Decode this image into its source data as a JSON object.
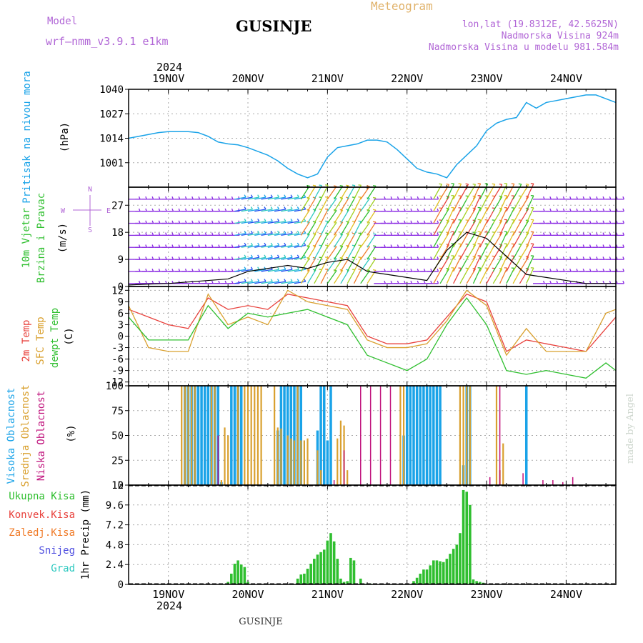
{
  "header": {
    "model_label": "Model",
    "model_name": "wrf–nmm_v3.9.1  e1km",
    "title": "GUSINJE",
    "meteogram_label": "Meteogram",
    "lonlat": "lon,lat (19.8312E, 42.5625N)",
    "elevation": "Nadmorska Visina 924m",
    "model_elevation": "Nadmorska Visina u modelu 981.584m",
    "year_top": "2024",
    "year_bottom": "2024",
    "footer_title": "GUSINJE",
    "watermark": "made by Angel"
  },
  "colors": {
    "pressure": "#1aa3e8",
    "t2m": "#e8413c",
    "sfc": "#d9a02e",
    "dew": "#2fbf2f",
    "cloud_high": "#1aa3e8",
    "cloud_mid": "#d9a02e",
    "cloud_low": "#c0127c",
    "precip": "#2fbf2f",
    "wind_speed": "#000000"
  },
  "chart_data": [
    {
      "type": "line",
      "panel": "pressure",
      "ylabel": [
        "Pritisak na nivou mora",
        "(hPa)"
      ],
      "ylim": [
        988,
        1040
      ],
      "yticks": [
        1001,
        1014,
        1027,
        1040
      ],
      "x_days": [
        "19NOV",
        "20NOV",
        "21NOV",
        "22NOV",
        "23NOV",
        "24NOV"
      ],
      "x_hours": [
        0,
        3,
        6,
        9,
        12,
        15,
        18,
        21,
        24,
        27,
        30,
        33,
        36,
        39,
        42,
        45,
        48,
        51,
        54,
        57,
        60,
        63,
        66,
        69,
        72,
        75,
        78,
        81,
        84,
        87,
        90,
        93,
        96,
        99,
        102,
        105,
        108,
        111,
        114,
        117,
        120,
        123,
        126,
        129,
        132,
        135,
        138,
        141,
        144,
        147
      ],
      "values": [
        1014,
        1015,
        1016,
        1017,
        1017.5,
        1017.5,
        1017.5,
        1017,
        1015,
        1012,
        1011,
        1010.5,
        1009,
        1007,
        1005,
        1002,
        998,
        995,
        993,
        995,
        1004,
        1009,
        1010,
        1011,
        1013,
        1013,
        1012,
        1008,
        1003,
        998,
        996,
        995,
        993,
        1000,
        1005,
        1010,
        1018,
        1022,
        1024,
        1025,
        1033,
        1030,
        1033,
        1034,
        1035,
        1036,
        1037,
        1037,
        1035,
        1033
      ]
    },
    {
      "type": "line",
      "panel": "wind",
      "ylabel": [
        "10m Vjetar",
        "Brzina i Pravac",
        "(m/s)"
      ],
      "compass": [
        "N",
        "E",
        "W",
        "S"
      ],
      "ylim": [
        0,
        33
      ],
      "yticks": [
        0,
        9,
        18,
        27
      ],
      "x_hours": [
        0,
        6,
        12,
        18,
        24,
        30,
        36,
        42,
        48,
        54,
        60,
        66,
        72,
        78,
        84,
        90,
        96,
        102,
        108,
        114,
        120,
        126,
        132,
        138,
        144,
        147
      ],
      "values": [
        0.5,
        0.8,
        1,
        1.5,
        2,
        2.5,
        5,
        6,
        7,
        6,
        8,
        9,
        5,
        4,
        3,
        2,
        12,
        18,
        16,
        10,
        4,
        3,
        2,
        1,
        1,
        1
      ]
    },
    {
      "type": "line",
      "panel": "temperature",
      "ylabel": [
        "2m Temp",
        "SFC Temp",
        "dewpt Temp",
        "(C)"
      ],
      "ylim": [
        -13,
        13
      ],
      "yticks": [
        -12,
        -9,
        -6,
        -3,
        0,
        3,
        6,
        9,
        12
      ],
      "x_hours": [
        0,
        6,
        12,
        18,
        24,
        30,
        36,
        42,
        48,
        54,
        60,
        66,
        72,
        78,
        84,
        90,
        96,
        102,
        108,
        114,
        120,
        126,
        132,
        138,
        144,
        147
      ],
      "series": [
        {
          "name": "2m Temp",
          "values": [
            7,
            5,
            3,
            2,
            10,
            7,
            8,
            7,
            11,
            10,
            9,
            8,
            0,
            -2,
            -2,
            -1,
            5,
            11,
            9,
            -4,
            -1,
            -2,
            -3,
            -4,
            2,
            5
          ]
        },
        {
          "name": "SFC Temp",
          "values": [
            8,
            -3,
            -4,
            -4,
            11,
            3,
            5,
            3,
            12,
            9,
            8,
            7,
            -1,
            -3,
            -3,
            -2,
            4,
            12,
            8,
            -5,
            2,
            -4,
            -4,
            -4,
            6,
            7
          ]
        },
        {
          "name": "dewpt Temp",
          "values": [
            5,
            -1,
            -1,
            -1,
            8,
            2,
            6,
            5,
            6,
            7,
            5,
            3,
            -5,
            -7,
            -9,
            -6,
            3,
            10,
            3,
            -9,
            -10,
            -9,
            -10,
            -11,
            -7,
            -9
          ]
        }
      ]
    },
    {
      "type": "bar",
      "panel": "clouds",
      "ylabel": [
        "Visoka Oblacnost",
        "Srednja Oblacnost",
        "Niska Oblacnost",
        "(%)"
      ],
      "ylim": [
        0,
        100
      ],
      "yticks": [
        0,
        25,
        50,
        75,
        100
      ],
      "series": [
        {
          "name": "Visoka Oblacnost",
          "x_hours": [
            17,
            18,
            19,
            20,
            21,
            22,
            23,
            24,
            25,
            26,
            27,
            28,
            31,
            32,
            33,
            34,
            45,
            46,
            47,
            48,
            49,
            50,
            51,
            52,
            57,
            58,
            59,
            60,
            61,
            83,
            84,
            85,
            86,
            87,
            88,
            89,
            90,
            91,
            92,
            93,
            94,
            101,
            102,
            103,
            120
          ],
          "values": [
            100,
            100,
            100,
            100,
            100,
            100,
            100,
            100,
            100,
            100,
            100,
            3,
            100,
            100,
            100,
            100,
            55,
            100,
            100,
            100,
            100,
            100,
            100,
            100,
            55,
            100,
            100,
            45,
            100,
            50,
            100,
            100,
            100,
            100,
            100,
            100,
            100,
            100,
            100,
            100,
            100,
            20,
            100,
            100,
            100
          ]
        },
        {
          "name": "Srednja Oblacnost",
          "x_hours": [
            16,
            17,
            18,
            19,
            20,
            25,
            26,
            28,
            29,
            30,
            33,
            35,
            36,
            37,
            38,
            39,
            40,
            44,
            45,
            46,
            48,
            49,
            50,
            51,
            52,
            53,
            54,
            57,
            58,
            63,
            64,
            65,
            66,
            82,
            83,
            100,
            101,
            102,
            103,
            111,
            112,
            113
          ],
          "values": [
            100,
            100,
            100,
            100,
            100,
            100,
            100,
            5,
            58,
            50,
            100,
            100,
            100,
            100,
            100,
            100,
            100,
            100,
            58,
            57,
            50,
            47,
            45,
            100,
            45,
            45,
            47,
            35,
            15,
            47,
            65,
            60,
            15,
            100,
            100,
            100,
            100,
            100,
            100,
            100,
            15,
            42
          ]
        },
        {
          "name": "Niska Oblacnost",
          "x_hours": [
            27,
            62,
            65,
            70,
            73,
            76,
            79,
            109,
            112,
            119,
            125,
            128,
            131,
            134
          ],
          "values": [
            50,
            5,
            35,
            100,
            100,
            100,
            100,
            8,
            100,
            12,
            5,
            5,
            3,
            8
          ]
        }
      ]
    },
    {
      "type": "bar",
      "panel": "precipitation",
      "ylabel": [
        "1hr Precip (mm)"
      ],
      "legend": [
        "Ukupna  Kisa",
        "Konvek.Kisa",
        "Zaledj.Kisa",
        "Snijeg",
        "Grad"
      ],
      "ylim": [
        0,
        12
      ],
      "yticks": [
        0,
        2.4,
        4.8,
        7.2,
        9.6,
        12
      ],
      "x_hours": [
        30,
        31,
        32,
        33,
        34,
        35,
        36,
        51,
        52,
        53,
        54,
        55,
        56,
        57,
        58,
        59,
        60,
        61,
        62,
        63,
        64,
        65,
        66,
        67,
        68,
        70,
        71,
        72,
        73,
        86,
        87,
        88,
        89,
        90,
        91,
        92,
        93,
        94,
        95,
        96,
        97,
        98,
        99,
        100,
        101,
        102,
        103,
        104,
        105,
        106,
        107
      ],
      "values": [
        0.3,
        1.3,
        2.5,
        2.9,
        2.4,
        2.1,
        0.3,
        0.7,
        1.2,
        1.3,
        1.9,
        2.5,
        3.1,
        3.6,
        3.9,
        4.2,
        5.3,
        6.2,
        5.2,
        3.1,
        0.7,
        0.3,
        0.4,
        3.2,
        2.9,
        0.7,
        0.1,
        0.1,
        0.1,
        0.4,
        0.8,
        1.3,
        1.8,
        1.8,
        2.3,
        2.9,
        2.9,
        2.8,
        2.7,
        3.1,
        3.7,
        4.3,
        4.8,
        6.2,
        11.4,
        11.2,
        9.6,
        0.6,
        0.4,
        0.3,
        0.2
      ]
    }
  ]
}
